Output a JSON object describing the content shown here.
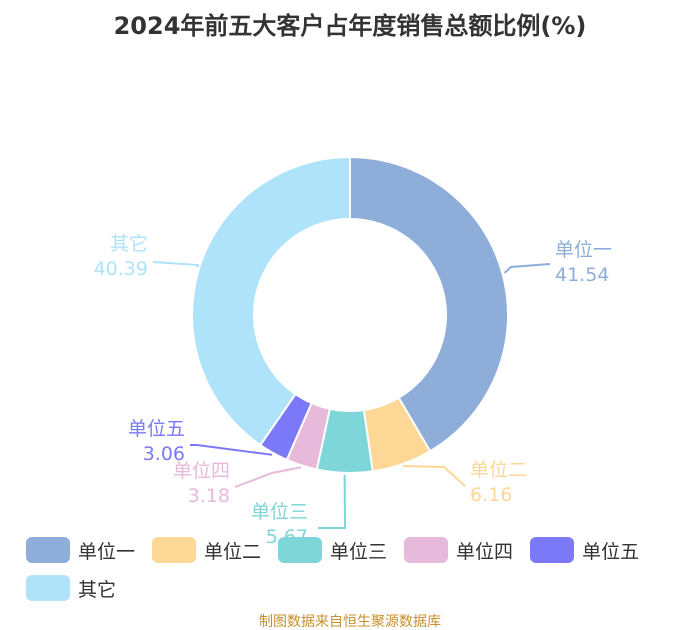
{
  "chart_data": {
    "type": "pie",
    "title": "2024年前五大客户占年度销售总额比例(%)",
    "categories": [
      "单位一",
      "单位二",
      "单位三",
      "单位四",
      "单位五",
      "其它"
    ],
    "values": [
      41.54,
      6.16,
      5.67,
      3.18,
      3.06,
      40.39
    ],
    "value_labels": [
      "41.54",
      "6.16",
      "5.67",
      "3.18",
      "3.06",
      "40.39"
    ],
    "colors": [
      "#8eaed9",
      "#fdd796",
      "#7fd6d8",
      "#e7b9da",
      "#7b79f7",
      "#aee3f9"
    ],
    "legend_position": "bottom"
  },
  "legend_items": [
    {
      "label": "单位一",
      "color": "#8eaed9"
    },
    {
      "label": "单位二",
      "color": "#fdd796"
    },
    {
      "label": "单位三",
      "color": "#7fd6d8"
    },
    {
      "label": "单位四",
      "color": "#e7b9da"
    },
    {
      "label": "单位五",
      "color": "#7b79f7"
    },
    {
      "label": "其它",
      "color": "#aee3f9"
    }
  ],
  "source_text": "制图数据来自恒生聚源数据库"
}
